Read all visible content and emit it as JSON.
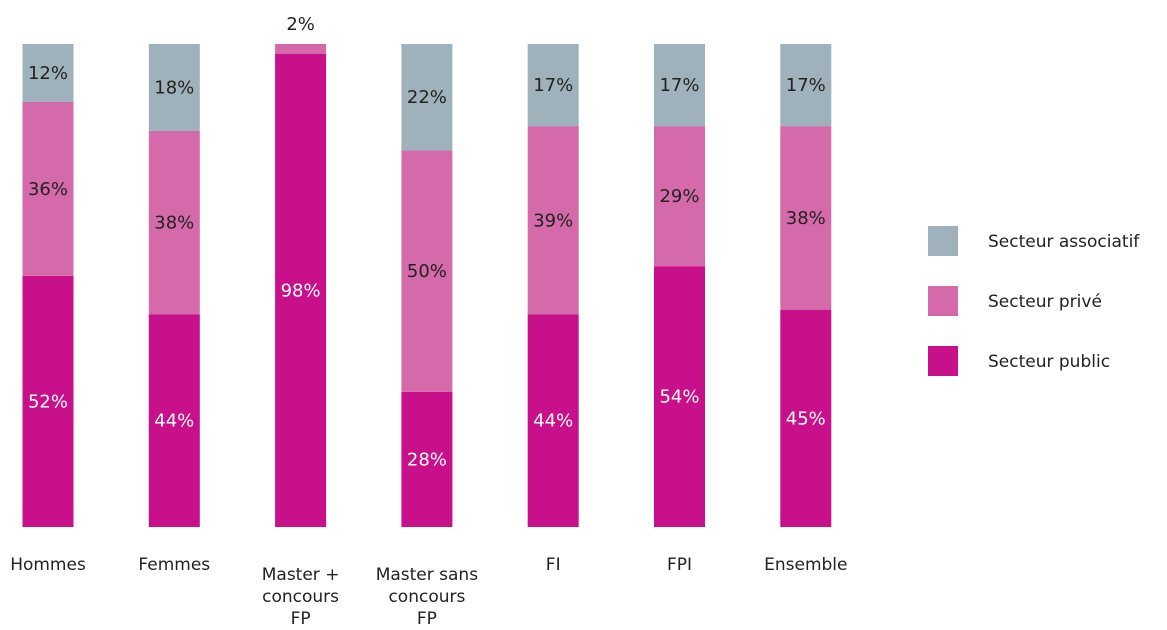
{
  "chart_data": {
    "type": "bar",
    "stacked": true,
    "normalized_percent": true,
    "categories": [
      [
        "Hommes"
      ],
      [
        "Femmes"
      ],
      [
        "Master +",
        "concours",
        "FP"
      ],
      [
        "Master sans",
        "concours",
        "FP"
      ],
      [
        "FI"
      ],
      [
        "FPI"
      ],
      [
        "Ensemble"
      ]
    ],
    "series": [
      {
        "name": "Secteur public",
        "color": "#c8108a",
        "values": [
          52,
          44,
          98,
          28,
          44,
          54,
          45
        ],
        "labels": [
          "52%",
          "44%",
          "98%",
          "28%",
          "44%",
          "54%",
          "45%"
        ]
      },
      {
        "name": "Secteur privé",
        "color": "#d56aaa",
        "values": [
          36,
          38,
          2,
          50,
          39,
          29,
          38
        ],
        "labels": [
          "36%",
          "38%",
          "2%",
          "50%",
          "39%",
          "29%",
          "38%"
        ]
      },
      {
        "name": "Secteur associatif",
        "color": "#9fb1ba",
        "values": [
          12,
          18,
          0,
          22,
          17,
          17,
          17
        ],
        "labels": [
          "12%",
          "18%",
          "",
          "22%",
          "17%",
          "17%",
          "17%"
        ]
      }
    ],
    "legend_order": [
      "Secteur associatif",
      "Secteur privé",
      "Secteur public"
    ],
    "legend_position": "right",
    "ylim": [
      0,
      100
    ],
    "grid": false
  }
}
